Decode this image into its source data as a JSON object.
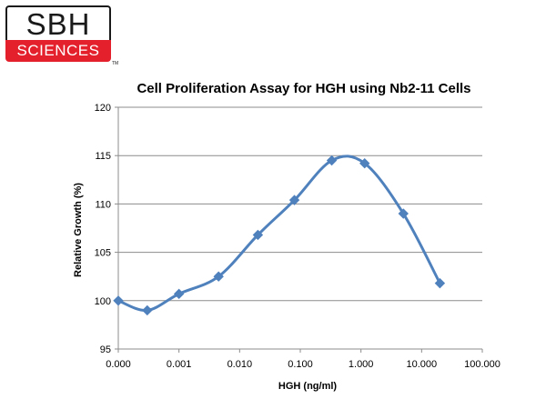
{
  "logo": {
    "top_text": "SBH",
    "bottom_text": "SCIENCES",
    "trademark": "TM"
  },
  "colors": {
    "series": "#4f81bd",
    "grid": "#8c8c8c",
    "logo_red": "#e3202b"
  },
  "chart_data": {
    "type": "line",
    "title": "Cell Proliferation Assay for HGH using Nb2-11 Cells",
    "xlabel": "HGH (ng/ml)",
    "ylabel": "Relative Growth (%)",
    "x_scale": "log",
    "xlim": [
      0.0001,
      100
    ],
    "x_ticks": [
      0.0001,
      0.001,
      0.01,
      0.1,
      1,
      10,
      100
    ],
    "x_tick_labels": [
      "0.000",
      "0.001",
      "0.010",
      "0.100",
      "1.000",
      "10.000",
      "100.000"
    ],
    "ylim": [
      95,
      120
    ],
    "y_ticks": [
      95,
      100,
      105,
      110,
      115,
      120
    ],
    "y_tick_labels": [
      "95",
      "100",
      "105",
      "110",
      "115",
      "120"
    ],
    "grid": "horizontal",
    "smooth": true,
    "marker": "diamond",
    "series": [
      {
        "x": [
          0.0001,
          0.0003,
          0.001,
          0.0045,
          0.02,
          0.08,
          0.33,
          1.15,
          5,
          20
        ],
        "y": [
          100.0,
          99.0,
          100.7,
          102.5,
          106.8,
          110.4,
          114.5,
          114.2,
          109.0,
          101.8
        ]
      }
    ]
  }
}
